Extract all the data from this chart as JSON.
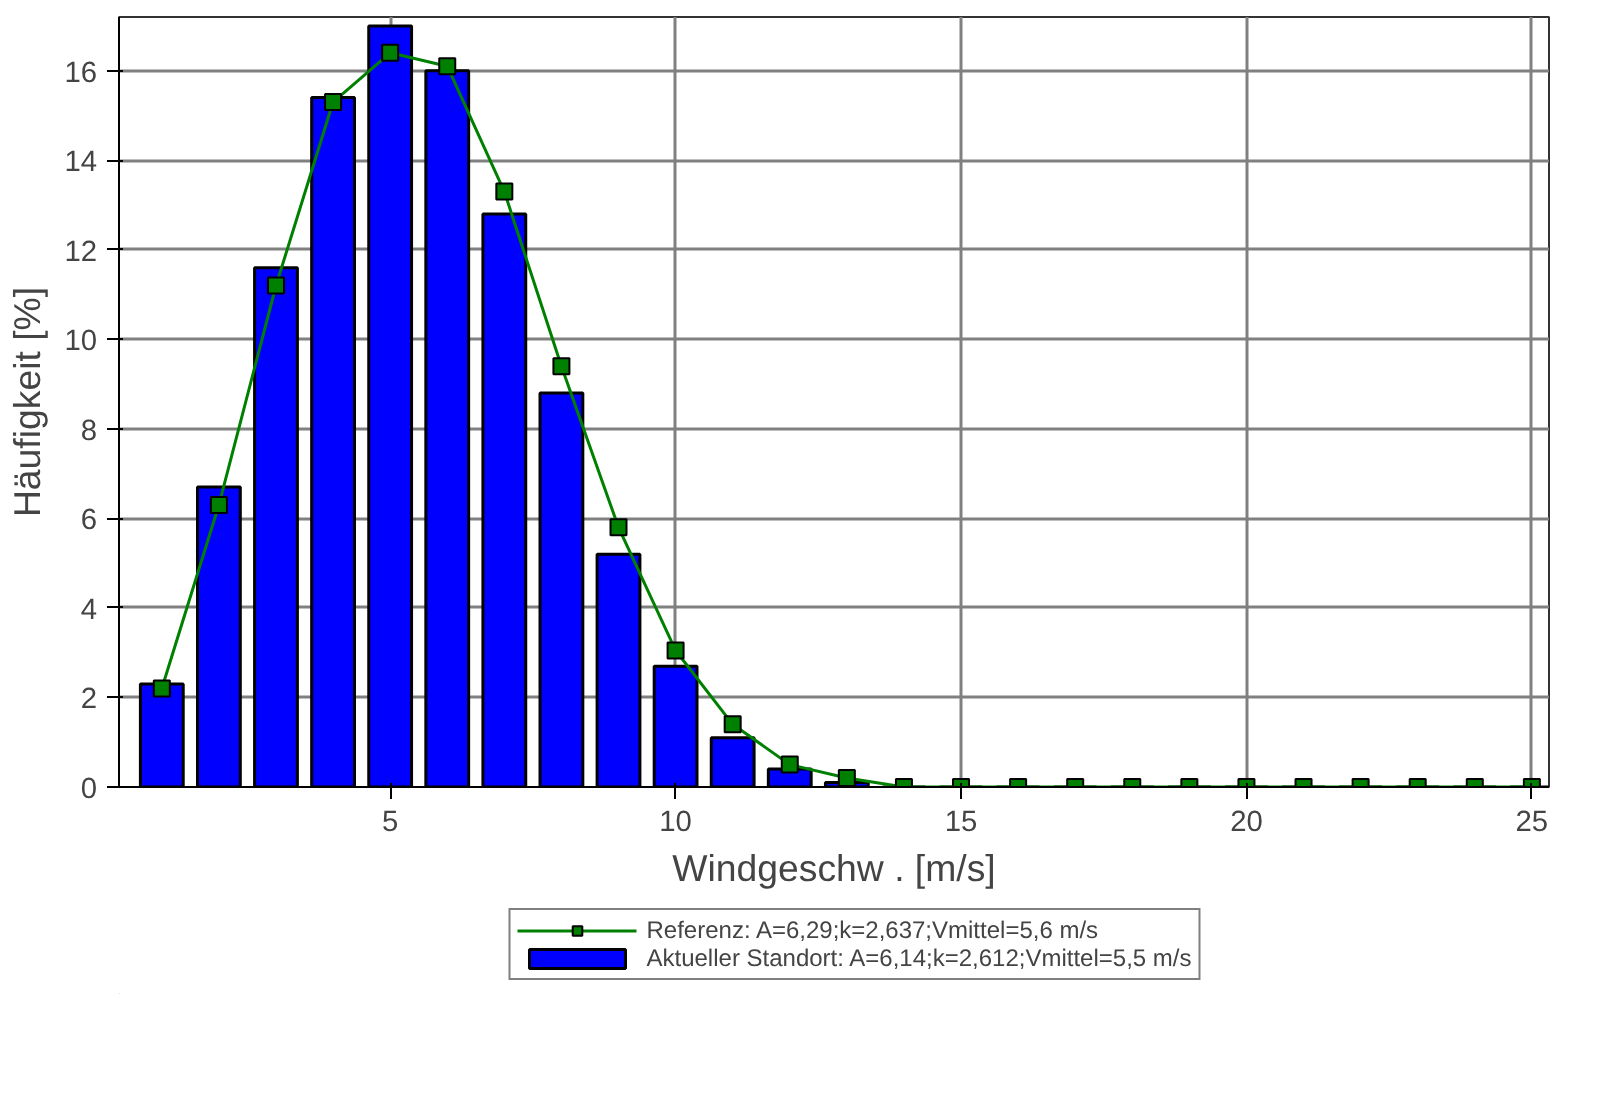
{
  "chart_data": {
    "type": "bar",
    "xlabel": "Windgeschw . [m/s]",
    "ylabel": "Häufigkeit [%]",
    "x": [
      1,
      2,
      3,
      4,
      5,
      6,
      7,
      8,
      9,
      10,
      11,
      12,
      13,
      14,
      15,
      16,
      17,
      18,
      19,
      20,
      21,
      22,
      23,
      24,
      25
    ],
    "series": [
      {
        "name": "Referenz: A=6,29;k=2,637;Vmittel=5,6 m/s",
        "type": "line",
        "color": "#008000",
        "marker": "square",
        "values": [
          2.2,
          6.3,
          11.2,
          15.3,
          16.4,
          16.1,
          13.3,
          9.4,
          5.8,
          3.05,
          1.4,
          0.5,
          0.2,
          0,
          0,
          0,
          0,
          0,
          0,
          0,
          0,
          0,
          0,
          0,
          0
        ]
      },
      {
        "name": "Aktueller Standort: A=6,14;k=2,612;Vmittel=5,5 m/s",
        "color": "#0000ff",
        "values": [
          2.3,
          6.7,
          11.6,
          15.4,
          17.0,
          16.0,
          12.8,
          8.8,
          5.2,
          2.7,
          1.1,
          0.4,
          0.1,
          0,
          0,
          0,
          0,
          0,
          0,
          0,
          0,
          0,
          0,
          0,
          0
        ]
      }
    ],
    "xlim": [
      0.25,
      25.3
    ],
    "ylim": [
      0,
      17.2
    ],
    "xticks": [
      5,
      10,
      15,
      20,
      25
    ],
    "yticks": [
      0,
      2,
      4,
      6,
      8,
      10,
      12,
      14,
      16
    ],
    "grid": true,
    "legend": "bottom"
  }
}
